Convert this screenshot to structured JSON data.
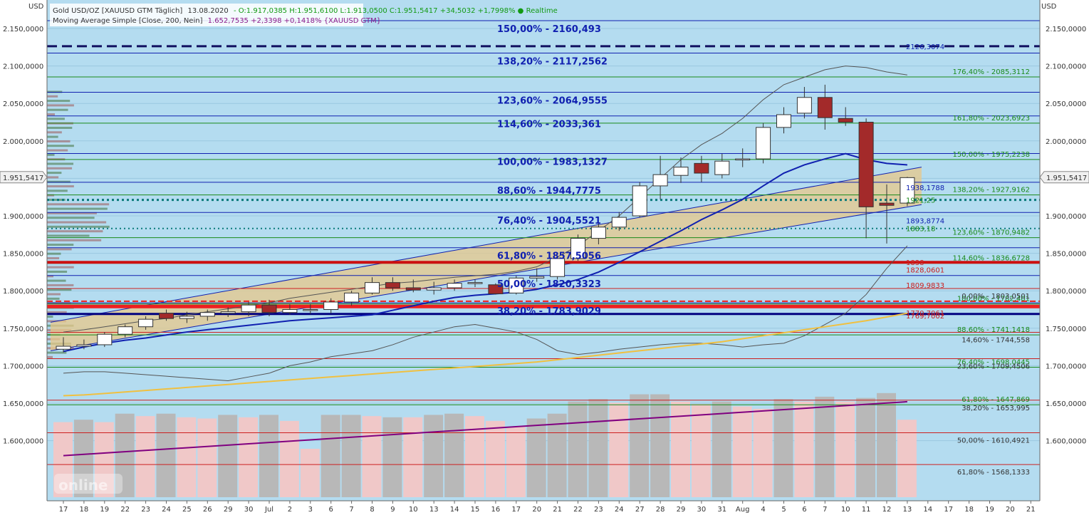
{
  "header": {
    "line1_instrument": "Gold USD/OZ [XAUUSD GTM Täglich]",
    "line1_date": "13.08.2020",
    "line1_values": "- O:1.917,0385 H:1.951,6100 L:1.913,0500 C:1.951,5417 +34,5032 +1,7998% ● Realtime",
    "line2_indicator": "Moving Average Simple [Close, 200, Nein]",
    "line2_values": "1.652,7535 +2,3398 +0,1418% {XAUUSD GTM}"
  },
  "currency_left": "USD",
  "currency_right": "USD",
  "watermark": "online",
  "colors": {
    "background": "#b4dcf0",
    "up_candle": "#ffffff",
    "down_candle": "#a32a2a",
    "ma200": "#f0c040",
    "ma20": "#1020b0",
    "channel": "#e8c88a",
    "fib_blue": "#1020b0",
    "fib_green": "#1a8a1a",
    "fib_red": "#cc2020"
  },
  "chart_data": {
    "type": "candlestick",
    "ylim": [
      1555,
      2185
    ],
    "x_ticks": [
      "17",
      "18",
      "19",
      "22",
      "23",
      "24",
      "25",
      "26",
      "29",
      "30",
      "Jul",
      "2",
      "3",
      "6",
      "7",
      "8",
      "9",
      "10",
      "13",
      "14",
      "15",
      "16",
      "17",
      "20",
      "21",
      "22",
      "23",
      "24",
      "27",
      "28",
      "29",
      "30",
      "31",
      "Aug",
      "4",
      "5",
      "6",
      "7",
      "10",
      "11",
      "12",
      "13",
      "14",
      "17",
      "18",
      "19",
      "20",
      "21"
    ],
    "y_ticks": [
      {
        "v": 2150,
        "label": "2.150,0000"
      },
      {
        "v": 2100,
        "label": "2.100,0000"
      },
      {
        "v": 2050,
        "label": "2.050,0000"
      },
      {
        "v": 2000,
        "label": "2.000,0000"
      },
      {
        "v": 1950,
        "label": "1.950,0000"
      },
      {
        "v": 1900,
        "label": "1.900,0000"
      },
      {
        "v": 1850,
        "label": "1.850,0000"
      },
      {
        "v": 1800,
        "label": "1.800,0000"
      },
      {
        "v": 1750,
        "label": "1.750,0000"
      },
      {
        "v": 1700,
        "label": "1.700,0000"
      },
      {
        "v": 1650,
        "label": "1.650,0000"
      },
      {
        "v": 1600,
        "label": "1.600,0000"
      }
    ],
    "current_price": {
      "value": 1951.5417,
      "label": "1.951,5417"
    },
    "candles": [
      {
        "o": 1722,
        "h": 1738,
        "l": 1718,
        "c": 1726
      },
      {
        "o": 1726,
        "h": 1735,
        "l": 1722,
        "c": 1728
      },
      {
        "o": 1728,
        "h": 1745,
        "l": 1725,
        "c": 1742
      },
      {
        "o": 1742,
        "h": 1755,
        "l": 1738,
        "c": 1752
      },
      {
        "o": 1752,
        "h": 1766,
        "l": 1748,
        "c": 1762
      },
      {
        "o": 1770,
        "h": 1775,
        "l": 1760,
        "c": 1763
      },
      {
        "o": 1763,
        "h": 1772,
        "l": 1757,
        "c": 1766
      },
      {
        "o": 1766,
        "h": 1775,
        "l": 1760,
        "c": 1771
      },
      {
        "o": 1770,
        "h": 1778,
        "l": 1765,
        "c": 1772
      },
      {
        "o": 1772,
        "h": 1785,
        "l": 1766,
        "c": 1781
      },
      {
        "o": 1781,
        "h": 1788,
        "l": 1766,
        "c": 1771
      },
      {
        "o": 1771,
        "h": 1782,
        "l": 1768,
        "c": 1775
      },
      {
        "o": 1774,
        "h": 1782,
        "l": 1769,
        "c": 1775
      },
      {
        "o": 1775,
        "h": 1790,
        "l": 1770,
        "c": 1785
      },
      {
        "o": 1785,
        "h": 1800,
        "l": 1780,
        "c": 1797
      },
      {
        "o": 1797,
        "h": 1818,
        "l": 1795,
        "c": 1811
      },
      {
        "o": 1811,
        "h": 1818,
        "l": 1800,
        "c": 1804
      },
      {
        "o": 1804,
        "h": 1815,
        "l": 1798,
        "c": 1801
      },
      {
        "o": 1801,
        "h": 1812,
        "l": 1795,
        "c": 1804
      },
      {
        "o": 1804,
        "h": 1815,
        "l": 1800,
        "c": 1810
      },
      {
        "o": 1810,
        "h": 1815,
        "l": 1805,
        "c": 1811
      },
      {
        "o": 1808,
        "h": 1810,
        "l": 1795,
        "c": 1796
      },
      {
        "o": 1797,
        "h": 1820,
        "l": 1795,
        "c": 1817
      },
      {
        "o": 1817,
        "h": 1830,
        "l": 1812,
        "c": 1819
      },
      {
        "o": 1819,
        "h": 1845,
        "l": 1815,
        "c": 1843
      },
      {
        "o": 1843,
        "h": 1875,
        "l": 1840,
        "c": 1870
      },
      {
        "o": 1870,
        "h": 1890,
        "l": 1862,
        "c": 1885
      },
      {
        "o": 1885,
        "h": 1905,
        "l": 1880,
        "c": 1898
      },
      {
        "o": 1900,
        "h": 1945,
        "l": 1898,
        "c": 1940
      },
      {
        "o": 1940,
        "h": 1980,
        "l": 1922,
        "c": 1955
      },
      {
        "o": 1954,
        "h": 1978,
        "l": 1944,
        "c": 1965
      },
      {
        "o": 1970,
        "h": 1980,
        "l": 1945,
        "c": 1957
      },
      {
        "o": 1955,
        "h": 1983,
        "l": 1950,
        "c": 1973
      },
      {
        "o": 1975,
        "h": 1990,
        "l": 1965,
        "c": 1976
      },
      {
        "o": 1976,
        "h": 2024,
        "l": 1970,
        "c": 2018
      },
      {
        "o": 2018,
        "h": 2045,
        "l": 2010,
        "c": 2035
      },
      {
        "o": 2037,
        "h": 2072,
        "l": 2030,
        "c": 2058
      },
      {
        "o": 2058,
        "h": 2075,
        "l": 2015,
        "c": 2031
      },
      {
        "o": 2030,
        "h": 2045,
        "l": 2020,
        "c": 2025
      },
      {
        "o": 2025,
        "h": 2030,
        "l": 1870,
        "c": 1912
      },
      {
        "o": 1917,
        "h": 1942,
        "l": 1863,
        "c": 1914
      },
      {
        "o": 1917,
        "h": 1952,
        "l": 1913,
        "c": 1951
      }
    ],
    "ma200": [
      1660,
      1661,
      1663,
      1665,
      1667,
      1669,
      1671,
      1673,
      1675,
      1677,
      1679,
      1681,
      1683,
      1685,
      1687,
      1689,
      1691,
      1693,
      1695,
      1697,
      1699,
      1701,
      1703,
      1705,
      1708,
      1711,
      1714,
      1717,
      1720,
      1723,
      1726,
      1729,
      1732,
      1736,
      1740,
      1744,
      1748,
      1752,
      1756,
      1760,
      1765,
      1770
    ],
    "ma20": [
      1719,
      1725,
      1730,
      1734,
      1737,
      1741,
      1745,
      1748,
      1751,
      1754,
      1757,
      1760,
      1762,
      1764,
      1766,
      1768,
      1774,
      1780,
      1786,
      1791,
      1794,
      1796,
      1798,
      1802,
      1808,
      1815,
      1825,
      1838,
      1852,
      1866,
      1880,
      1895,
      1908,
      1922,
      1940,
      1957,
      1968,
      1976,
      1983,
      1975,
      1970,
      1968
    ],
    "bands_upper": [
      1745,
      1748,
      1752,
      1756,
      1760,
      1763,
      1768,
      1772,
      1776,
      1780,
      1784,
      1790,
      1794,
      1798,
      1802,
      1806,
      1810,
      1812,
      1815,
      1818,
      1820,
      1822,
      1826,
      1832,
      1845,
      1860,
      1880,
      1900,
      1925,
      1950,
      1975,
      1995,
      2010,
      2030,
      2055,
      2075,
      2085,
      2095,
      2100,
      2098,
      2092,
      2088
    ],
    "bands_lower": [
      1690,
      1692,
      1692,
      1690,
      1688,
      1686,
      1684,
      1682,
      1680,
      1685,
      1690,
      1700,
      1705,
      1712,
      1716,
      1720,
      1728,
      1738,
      1745,
      1752,
      1755,
      1750,
      1745,
      1735,
      1720,
      1715,
      1718,
      1722,
      1725,
      1728,
      1730,
      1730,
      1728,
      1725,
      1728,
      1730,
      1740,
      1755,
      1770,
      1795,
      1830,
      1860
    ],
    "volume": [
      {
        "v": 0.62,
        "g": false
      },
      {
        "v": 0.64,
        "g": true
      },
      {
        "v": 0.62,
        "g": false
      },
      {
        "v": 0.69,
        "g": true
      },
      {
        "v": 0.67,
        "g": false
      },
      {
        "v": 0.69,
        "g": true
      },
      {
        "v": 0.66,
        "g": false
      },
      {
        "v": 0.65,
        "g": false
      },
      {
        "v": 0.68,
        "g": true
      },
      {
        "v": 0.66,
        "g": false
      },
      {
        "v": 0.68,
        "g": true
      },
      {
        "v": 0.63,
        "g": false
      },
      {
        "v": 0.4,
        "g": false
      },
      {
        "v": 0.68,
        "g": true
      },
      {
        "v": 0.68,
        "g": true
      },
      {
        "v": 0.67,
        "g": false
      },
      {
        "v": 0.66,
        "g": true
      },
      {
        "v": 0.66,
        "g": false
      },
      {
        "v": 0.68,
        "g": true
      },
      {
        "v": 0.69,
        "g": true
      },
      {
        "v": 0.67,
        "g": false
      },
      {
        "v": 0.63,
        "g": false
      },
      {
        "v": 0.58,
        "g": false
      },
      {
        "v": 0.65,
        "g": true
      },
      {
        "v": 0.69,
        "g": true
      },
      {
        "v": 0.79,
        "g": true
      },
      {
        "v": 0.81,
        "g": true
      },
      {
        "v": 0.78,
        "g": false
      },
      {
        "v": 0.85,
        "g": true
      },
      {
        "v": 0.85,
        "g": true
      },
      {
        "v": 0.79,
        "g": false
      },
      {
        "v": 0.77,
        "g": false
      },
      {
        "v": 0.79,
        "g": true
      },
      {
        "v": 0.75,
        "g": false
      },
      {
        "v": 0.73,
        "g": false
      },
      {
        "v": 0.81,
        "g": true
      },
      {
        "v": 0.79,
        "g": false
      },
      {
        "v": 0.83,
        "g": true
      },
      {
        "v": 0.79,
        "g": false
      },
      {
        "v": 0.82,
        "g": true
      },
      {
        "v": 0.86,
        "g": true
      },
      {
        "v": 0.64,
        "g": false
      }
    ],
    "fib_left": [
      {
        "v": 2160.493,
        "label": "150,00% - 2160,493"
      },
      {
        "v": 2117.2562,
        "label": "138,20% - 2117,2562"
      },
      {
        "v": 2064.9555,
        "label": "123,60% - 2064,9555"
      },
      {
        "v": 2033.361,
        "label": "114,60% - 2033,361"
      },
      {
        "v": 1983.1327,
        "label": "100,00% - 1983,1327"
      },
      {
        "v": 1944.7775,
        "label": "88,60% - 1944,7775"
      },
      {
        "v": 1904.5521,
        "label": "76,40% - 1904,5521"
      },
      {
        "v": 1857.5056,
        "label": "61,80% - 1857,5056"
      },
      {
        "v": 1820.3323,
        "label": "50,00% - 1820,3323"
      },
      {
        "v": 1783.9029,
        "label": "38,20% - 1783,9029"
      }
    ],
    "fib_right_green": [
      {
        "v": 2085.3112,
        "label": "176,40% - 2085,3112"
      },
      {
        "v": 2023.6923,
        "label": "161,80% - 2023,6923"
      },
      {
        "v": 1975.2238,
        "label": "150,00% - 1975,2238"
      },
      {
        "v": 1927.9162,
        "label": "138,20% - 1927,9162"
      },
      {
        "v": 1870.9482,
        "label": "123,60% - 1870,9482"
      },
      {
        "v": 1836.6728,
        "label": "114,60% - 1836,6728"
      },
      {
        "v": 1782.401,
        "label": "100,00% - 1782,401"
      },
      {
        "v": 1741.1418,
        "label": "88,60% - 1741,1418"
      },
      {
        "v": 1698.0445,
        "label": "76,40% - 1698,0445"
      },
      {
        "v": 1647.869,
        "label": "61,80% - 1647,869"
      }
    ],
    "fib_right_red": [
      {
        "v": 1803.0501,
        "label": "0,00% - 1803,0501"
      },
      {
        "v": 1744.558,
        "label": "14,60% - 1744,558"
      },
      {
        "v": 1709.4506,
        "label": "23,60% - 1709,4506"
      },
      {
        "v": 1653.995,
        "label": "38,20% - 1653,995"
      },
      {
        "v": 1610.4921,
        "label": "50,00% - 1610,4921"
      },
      {
        "v": 1568.1333,
        "label": "61,80% - 1568,1333"
      }
    ],
    "price_notes": [
      {
        "v": 2126.3074,
        "label": "2126,3074",
        "color": "#1020b0"
      },
      {
        "v": 1938.1788,
        "label": "1938,1788",
        "color": "#1020b0"
      },
      {
        "v": 1921.25,
        "label": "1921,25",
        "color": "#1a8a1a"
      },
      {
        "v": 1893.8774,
        "label": "1893,8774",
        "color": "#1020b0"
      },
      {
        "v": 1883.18,
        "label": "1883,18",
        "color": "#1a8a1a"
      },
      {
        "v": 1838,
        "label": "1838",
        "color": "#cc2020"
      },
      {
        "v": 1828.0601,
        "label": "1828,0601",
        "color": "#cc2020"
      },
      {
        "v": 1808,
        "label": "1809,9833",
        "color": "#cc2020"
      },
      {
        "v": 1770.7061,
        "label": "1770,7061",
        "color": "#cc2020"
      },
      {
        "v": 1767,
        "label": "1769,7002",
        "color": "#cc2020"
      }
    ]
  }
}
